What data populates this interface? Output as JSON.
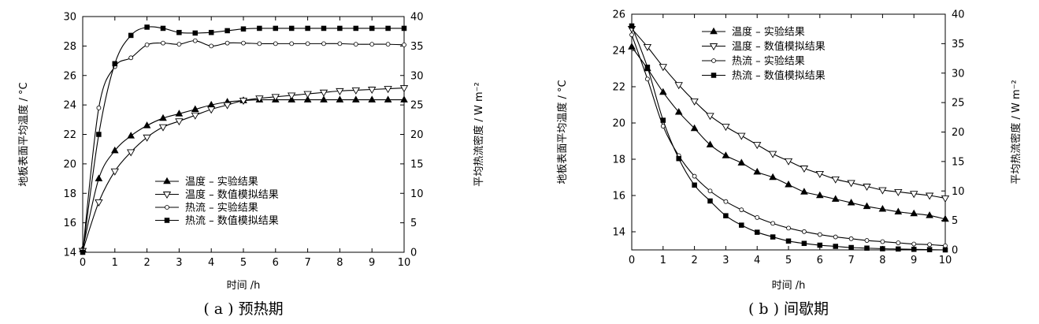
{
  "chart_data": [
    {
      "type": "line",
      "caption": "( a ) 预热期",
      "xlabel": "时间 /h",
      "ylabel": "地板表面平均温度 / °C",
      "y2label": "平均热流密度 / W m⁻²",
      "xlim": [
        0,
        10
      ],
      "ylim": [
        14,
        30
      ],
      "y2lim": [
        0,
        40
      ],
      "xticks": [
        0,
        1,
        2,
        3,
        4,
        5,
        6,
        7,
        8,
        9,
        10
      ],
      "yticks": [
        14,
        16,
        18,
        20,
        22,
        24,
        26,
        28,
        30
      ],
      "y2ticks": [
        0,
        5,
        10,
        15,
        20,
        25,
        30,
        35,
        40
      ],
      "grid": false,
      "legend_position": "lower-center",
      "series": [
        {
          "name": "温度 – 实验结果",
          "axis": "left",
          "marker": "filled-triangle",
          "x": [
            0,
            0.5,
            1,
            1.5,
            2,
            2.5,
            3,
            3.5,
            4,
            4.5,
            5,
            5.5,
            6,
            6.5,
            7,
            7.5,
            8,
            8.5,
            9,
            9.5,
            10
          ],
          "y": [
            14.2,
            19.0,
            20.9,
            21.9,
            22.6,
            23.1,
            23.4,
            23.7,
            24.0,
            24.2,
            24.3,
            24.35,
            24.35,
            24.35,
            24.35,
            24.35,
            24.35,
            24.35,
            24.35,
            24.35,
            24.35
          ]
        },
        {
          "name": "温度 – 数值模拟结果",
          "axis": "left",
          "marker": "open-inverted-triangle",
          "x": [
            0,
            0.5,
            1,
            1.5,
            2,
            2.5,
            3,
            3.5,
            4,
            4.5,
            5,
            5.5,
            6,
            6.5,
            7,
            7.5,
            8,
            8.5,
            9,
            9.5,
            10
          ],
          "y": [
            14.1,
            17.4,
            19.5,
            20.8,
            21.8,
            22.5,
            22.9,
            23.3,
            23.7,
            24.0,
            24.3,
            24.45,
            24.55,
            24.65,
            24.75,
            24.85,
            24.95,
            25.0,
            25.05,
            25.1,
            25.15
          ]
        },
        {
          "name": "热流 – 实验结果",
          "axis": "right",
          "marker": "small-open-circle",
          "x": [
            0,
            0.5,
            1,
            1.5,
            2,
            2.5,
            3,
            3.5,
            4,
            4.5,
            5,
            5.5,
            6,
            6.5,
            7,
            7.5,
            8,
            8.5,
            9,
            9.5,
            10
          ],
          "y": [
            0,
            24.5,
            31.5,
            33.0,
            35.2,
            35.5,
            35.3,
            35.9,
            35.0,
            35.5,
            35.5,
            35.4,
            35.4,
            35.4,
            35.4,
            35.4,
            35.4,
            35.3,
            35.3,
            35.3,
            35.2
          ]
        },
        {
          "name": "热流 – 数值模拟结果",
          "axis": "right",
          "marker": "filled-square",
          "x": [
            0,
            0.5,
            1,
            1.5,
            2,
            2.5,
            3,
            3.5,
            4,
            4.5,
            5,
            5.5,
            6,
            6.5,
            7,
            7.5,
            8,
            8.5,
            9,
            9.5,
            10
          ],
          "y": [
            0,
            20.0,
            32.0,
            36.8,
            38.2,
            38.0,
            37.3,
            37.2,
            37.3,
            37.6,
            37.9,
            38.0,
            38.0,
            38.0,
            38.0,
            38.0,
            38.0,
            38.0,
            38.0,
            38.0,
            38.0
          ]
        }
      ]
    },
    {
      "type": "line",
      "caption": "( b ) 间歇期",
      "xlabel": "时间 /h",
      "ylabel": "地板表面平均温度 / °C",
      "y2label": "平均热流密度 / W m⁻²",
      "xlim": [
        0,
        10
      ],
      "ylim": [
        13,
        26
      ],
      "y2lim": [
        0,
        40
      ],
      "xticks": [
        0,
        1,
        2,
        3,
        4,
        5,
        6,
        7,
        8,
        9,
        10
      ],
      "yticks": [
        14,
        16,
        18,
        20,
        22,
        24,
        26
      ],
      "y2ticks": [
        0,
        5,
        10,
        15,
        20,
        25,
        30,
        35,
        40
      ],
      "grid": false,
      "legend_position": "top-left",
      "series": [
        {
          "name": "温度 – 实验结果",
          "axis": "left",
          "marker": "filled-triangle",
          "x": [
            0,
            0.5,
            1,
            1.5,
            2,
            2.5,
            3,
            3.5,
            4,
            4.5,
            5,
            5.5,
            6,
            6.5,
            7,
            7.5,
            8,
            8.5,
            9,
            9.5,
            10
          ],
          "y": [
            24.2,
            23.0,
            21.7,
            20.6,
            19.7,
            18.8,
            18.2,
            17.8,
            17.3,
            17.0,
            16.6,
            16.2,
            16.0,
            15.8,
            15.6,
            15.4,
            15.25,
            15.1,
            15.0,
            14.9,
            14.7
          ]
        },
        {
          "name": "温度 – 数值模拟结果",
          "axis": "left",
          "marker": "open-inverted-triangle",
          "x": [
            0,
            0.5,
            1,
            1.5,
            2,
            2.5,
            3,
            3.5,
            4,
            4.5,
            5,
            5.5,
            6,
            6.5,
            7,
            7.5,
            8,
            8.5,
            9,
            9.5,
            10
          ],
          "y": [
            25.2,
            24.2,
            23.1,
            22.1,
            21.2,
            20.4,
            19.8,
            19.3,
            18.8,
            18.3,
            17.9,
            17.5,
            17.2,
            16.9,
            16.7,
            16.5,
            16.3,
            16.2,
            16.1,
            16.0,
            15.85
          ]
        },
        {
          "name": "热流 – 实验结果",
          "axis": "right",
          "marker": "small-open-circle",
          "x": [
            0,
            0.5,
            1,
            1.5,
            2,
            2.5,
            3,
            3.5,
            4,
            4.5,
            5,
            5.5,
            6,
            6.5,
            7,
            7.5,
            8,
            8.5,
            9,
            9.5,
            10
          ],
          "y": [
            36.5,
            29.0,
            21.0,
            16.0,
            12.5,
            10.0,
            8.2,
            6.8,
            5.5,
            4.5,
            3.7,
            3.1,
            2.6,
            2.2,
            1.9,
            1.6,
            1.4,
            1.2,
            1.0,
            0.9,
            0.7
          ]
        },
        {
          "name": "热流 – 数值模拟结果",
          "axis": "right",
          "marker": "filled-square",
          "x": [
            0,
            0.5,
            1,
            1.5,
            2,
            2.5,
            3,
            3.5,
            4,
            4.5,
            5,
            5.5,
            6,
            6.5,
            7,
            7.5,
            8,
            8.5,
            9,
            9.5,
            10
          ],
          "y": [
            38.0,
            31.0,
            22.0,
            15.5,
            11.0,
            8.3,
            5.8,
            4.2,
            3.0,
            2.2,
            1.5,
            1.1,
            0.8,
            0.6,
            0.4,
            0.3,
            0.2,
            0.15,
            0.1,
            0.05,
            0.0
          ]
        }
      ]
    }
  ]
}
